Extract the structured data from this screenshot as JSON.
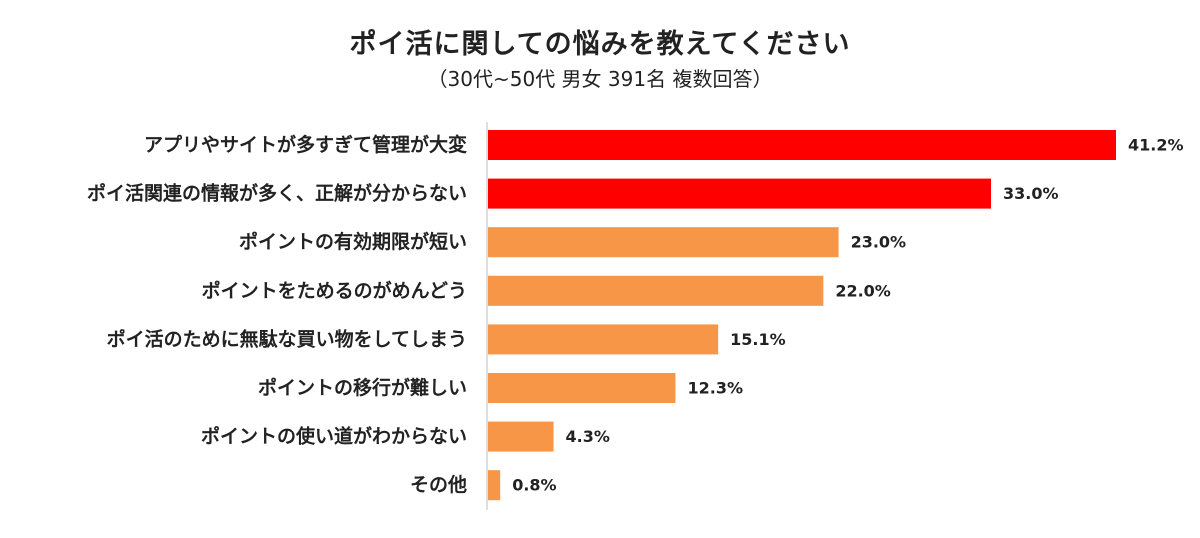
{
  "chart_data": {
    "type": "bar",
    "orientation": "horizontal",
    "title": "ポイ活に関しての悩みを教えてください",
    "subtitle": "（30代~50代 男女 391名 複数回答）",
    "categories": [
      "アプリやサイトが多すぎて管理が大変",
      "ポイ活関連の情報が多く、正解が分からない",
      "ポイントの有効期限が短い",
      "ポイントをためるのがめんどう",
      "ポイ活のために無駄な買い物をしてしまう",
      "ポイントの移行が難しい",
      "ポイントの使い道がわからない",
      "その他"
    ],
    "values": [
      41.2,
      33.0,
      23.0,
      22.0,
      15.1,
      12.3,
      4.3,
      0.8
    ],
    "value_labels": [
      "41.2%",
      "33.0%",
      "23.0%",
      "22.0%",
      "15.1%",
      "12.3%",
      "4.3%",
      "0.8%"
    ],
    "unit": "%",
    "xlim": [
      0,
      41.2
    ],
    "grid": false,
    "legend": "none",
    "colors": {
      "highlight": "#ff0000",
      "default": "#f79646",
      "axis": "#bfbfbf"
    },
    "highlight_count": 2
  }
}
